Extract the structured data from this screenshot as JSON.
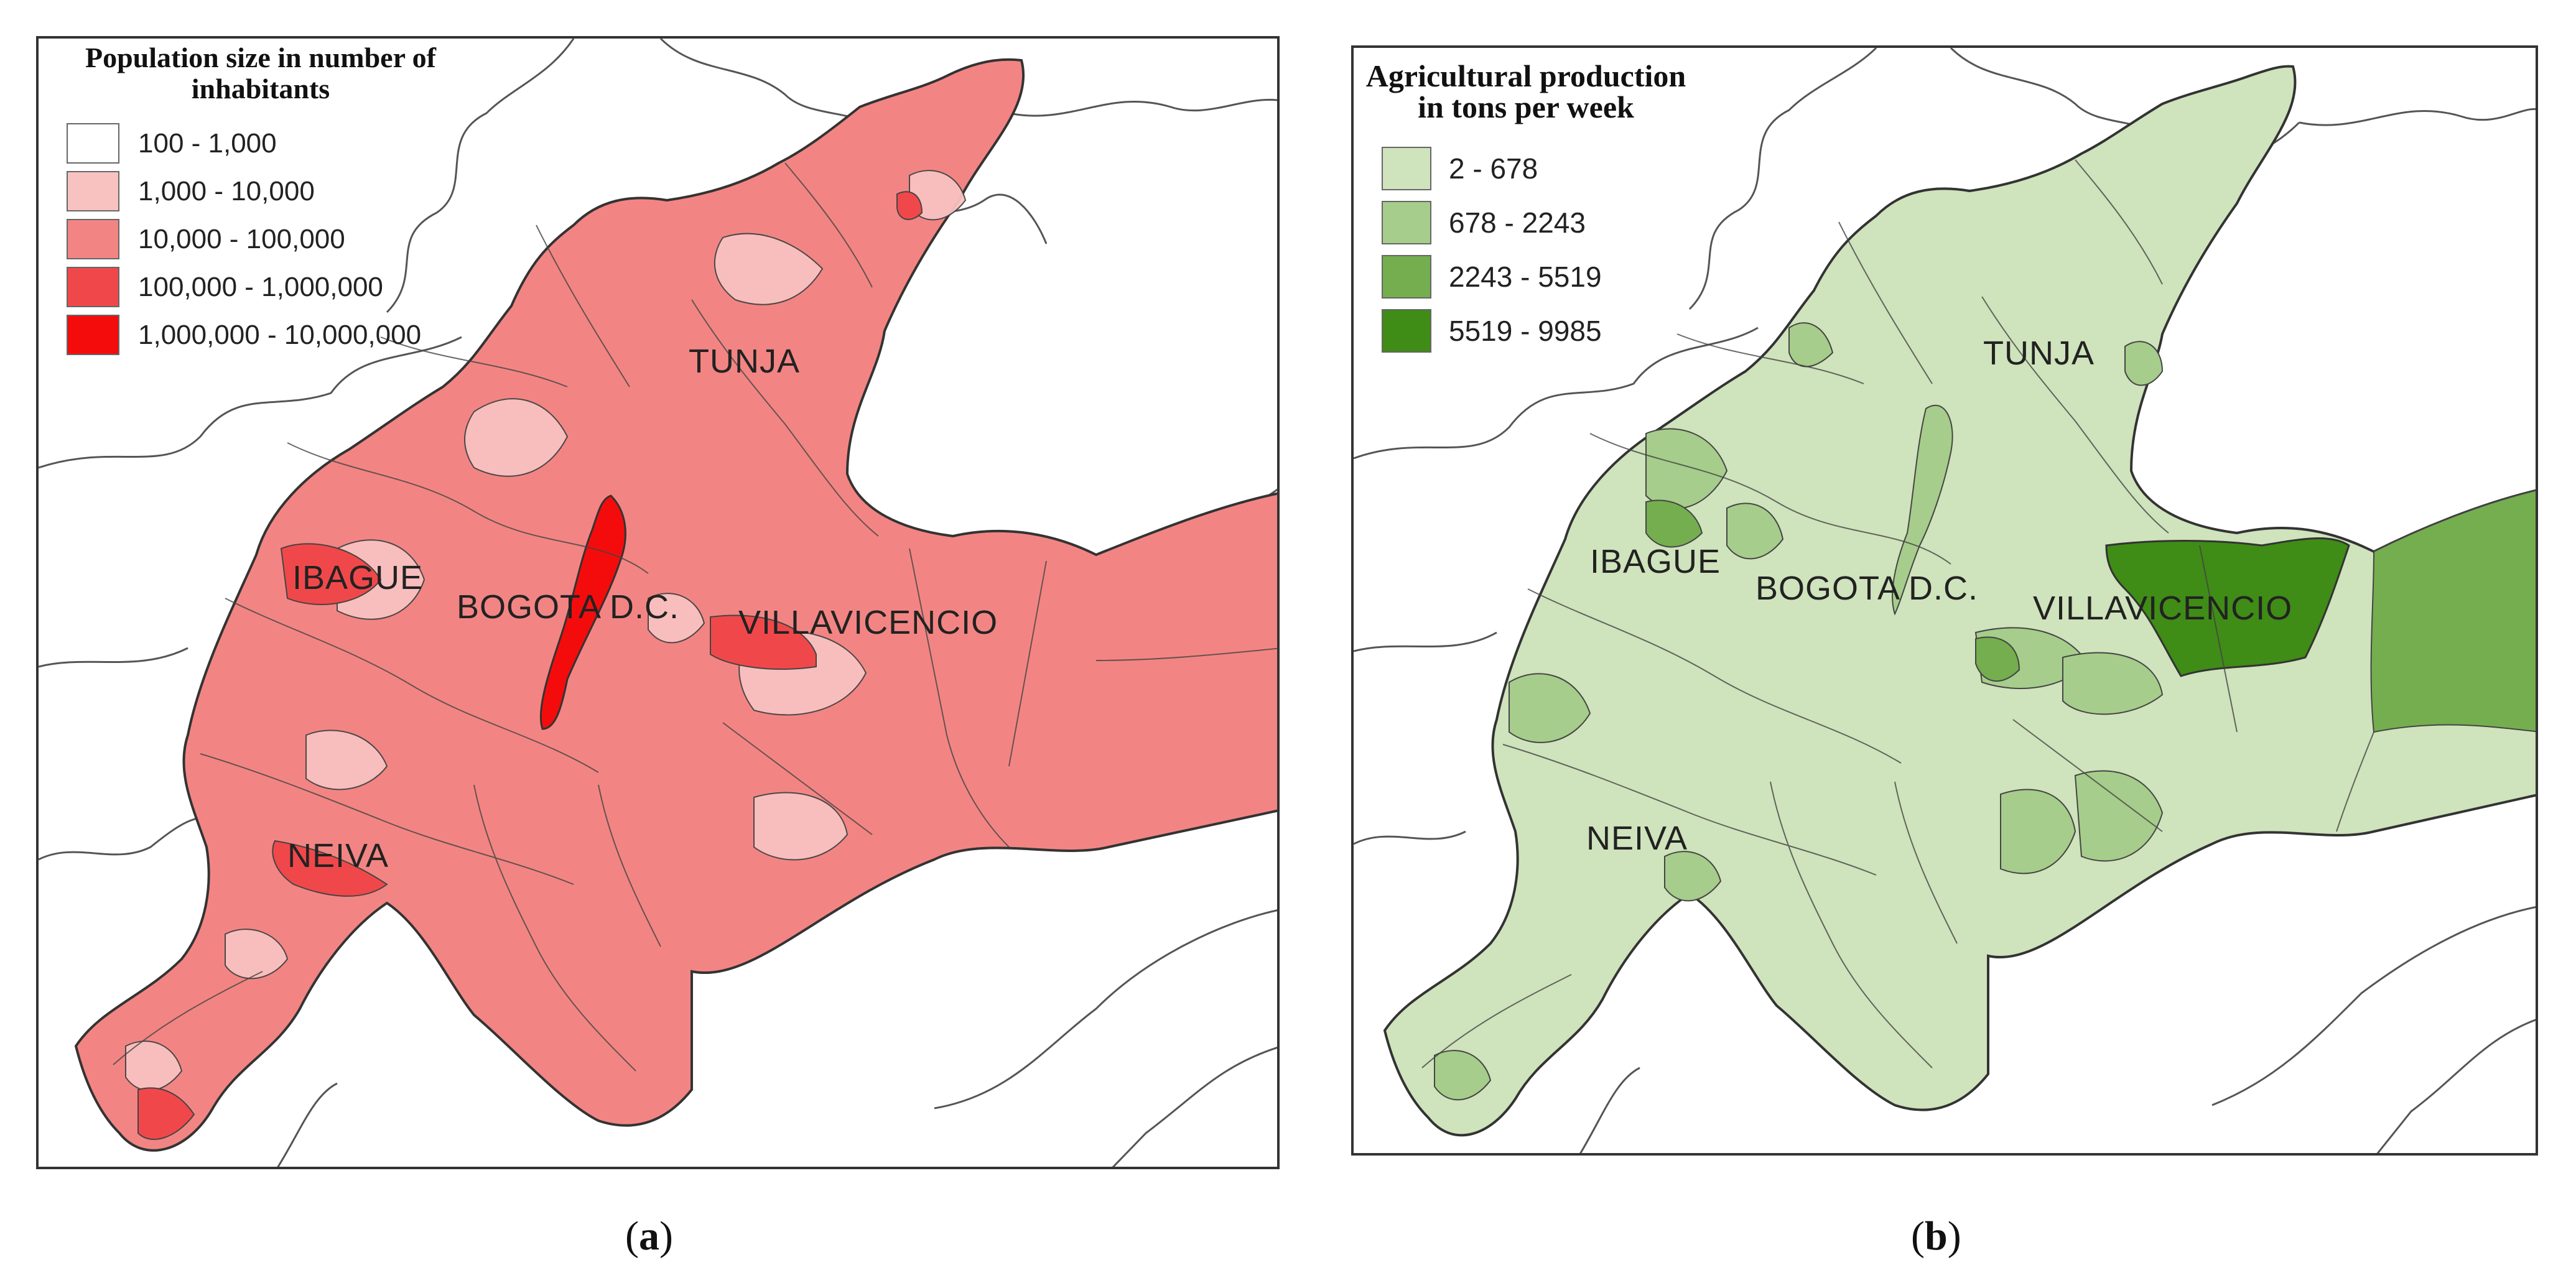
{
  "panels": [
    {
      "id": "a",
      "caption_letter": "a",
      "legend": {
        "title": "Population size in number of inhabitants",
        "items": [
          {
            "label": "100 - 1,000",
            "color": "#ffffff"
          },
          {
            "label": "1,000 - 10,000",
            "color": "#f8c2c1"
          },
          {
            "label": "10,000 - 100,000",
            "color": "#f28583"
          },
          {
            "label": "100,000 - 1,000,000",
            "color": "#f0484a"
          },
          {
            "label": "1,000,000 - 10,000,000",
            "color": "#f40c0c"
          }
        ]
      },
      "cities": [
        "TUNJA",
        "IBAGUE",
        "BOGOTA D.C.",
        "VILLAVICENCIO",
        "NEIVA"
      ]
    },
    {
      "id": "b",
      "caption_letter": "b",
      "legend": {
        "title": "Agricultural production in tons per week",
        "items": [
          {
            "label": "2 - 678",
            "color": "#cfe3bc"
          },
          {
            "label": "678 - 2243",
            "color": "#a6cd8b"
          },
          {
            "label": "2243 - 5519",
            "color": "#74ae4f"
          },
          {
            "label": "5519 - 9985",
            "color": "#3f8c16"
          }
        ]
      },
      "cities": [
        "TUNJA",
        "IBAGUE",
        "BOGOTA D.C.",
        "VILLAVICENCIO",
        "NEIVA"
      ]
    }
  ]
}
